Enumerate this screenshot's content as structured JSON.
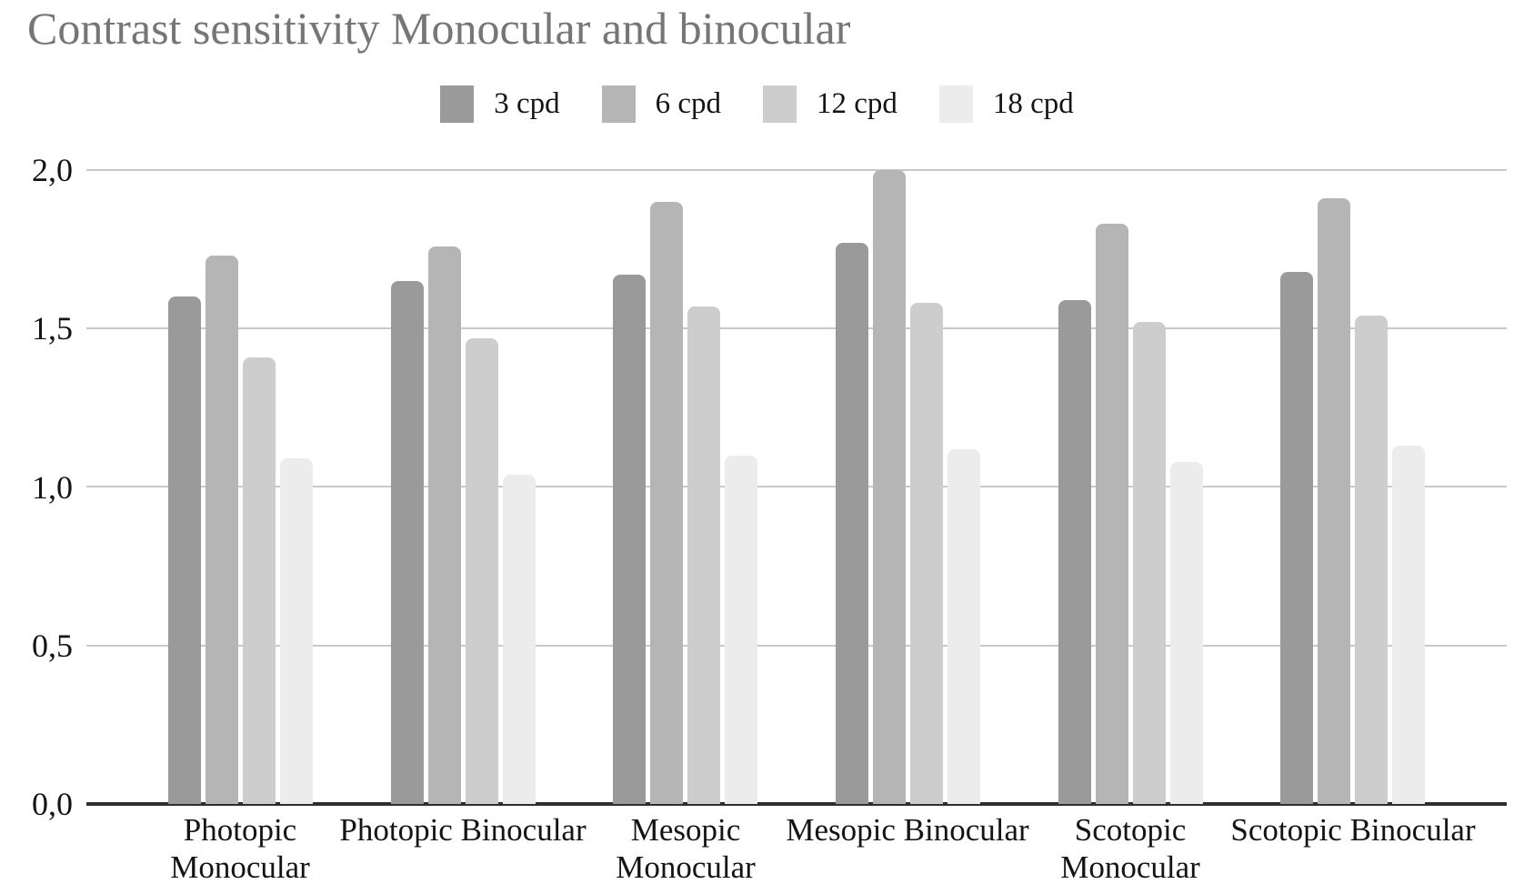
{
  "title": "Contrast sensitivity Monocular and binocular",
  "colors": {
    "background": "#ffffff",
    "title_text": "#767676",
    "axis_text": "#141414",
    "gridline": "#c9c9c9",
    "baseline": "#2e2e2e"
  },
  "chart_data": {
    "type": "bar",
    "title": "Contrast sensitivity Monocular and binocular",
    "categories": [
      "Photopic Monocular",
      "Photopic Binocular",
      "Mesopic Monocular",
      "Mesopic Binocular",
      "Scotopic Monocular",
      "Scotopic Binocular"
    ],
    "series": [
      {
        "name": "3 cpd",
        "color": "#9a9a9a",
        "values": [
          1.6,
          1.65,
          1.67,
          1.77,
          1.59,
          1.68
        ]
      },
      {
        "name": "6 cpd",
        "color": "#b5b5b5",
        "values": [
          1.73,
          1.76,
          1.9,
          2.0,
          1.83,
          1.91
        ]
      },
      {
        "name": "12 cpd",
        "color": "#cdcdcd",
        "values": [
          1.41,
          1.47,
          1.57,
          1.58,
          1.52,
          1.54
        ]
      },
      {
        "name": "18 cpd",
        "color": "#ececec",
        "values": [
          1.09,
          1.04,
          1.1,
          1.12,
          1.08,
          1.13
        ]
      }
    ],
    "xlabel": "",
    "ylabel": "",
    "ylim": [
      0,
      2.0
    ],
    "ytick_values": [
      0,
      0.5,
      1.0,
      1.5,
      2.0
    ],
    "ytick_labels": [
      "0,0",
      "0,5",
      "1,0",
      "1,5",
      "2,0"
    ],
    "grid": true,
    "legend_position": "top",
    "decimal_separator": ","
  }
}
